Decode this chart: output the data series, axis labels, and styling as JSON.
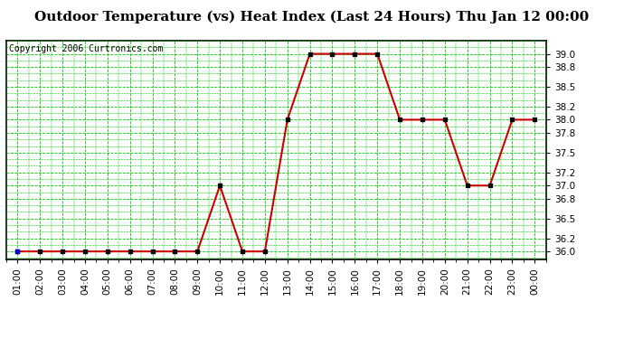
{
  "title": "Outdoor Temperature (vs) Heat Index (Last 24 Hours) Thu Jan 12 00:00",
  "copyright": "Copyright 2006 Curtronics.com",
  "x_labels": [
    "01:00",
    "02:00",
    "03:00",
    "04:00",
    "05:00",
    "06:00",
    "07:00",
    "08:00",
    "09:00",
    "10:00",
    "11:00",
    "12:00",
    "13:00",
    "14:00",
    "15:00",
    "16:00",
    "17:00",
    "18:00",
    "19:00",
    "20:00",
    "21:00",
    "22:00",
    "23:00",
    "00:00"
  ],
  "y_values": [
    36.0,
    36.0,
    36.0,
    36.0,
    36.0,
    36.0,
    36.0,
    36.0,
    36.0,
    37.0,
    36.0,
    36.0,
    38.0,
    39.0,
    39.0,
    39.0,
    39.0,
    38.0,
    38.0,
    38.0,
    37.0,
    37.0,
    38.0,
    38.0
  ],
  "ylim": [
    35.88,
    39.12
  ],
  "yticks": [
    36.0,
    36.2,
    36.5,
    36.8,
    37.0,
    37.2,
    37.5,
    37.8,
    38.0,
    38.2,
    38.5,
    38.8,
    39.0
  ],
  "line_color": "#cc0000",
  "marker_color": "#000000",
  "first_marker_color": "#0000cc",
  "grid_color": "#00cc00",
  "bg_color": "#ffffff",
  "title_fontsize": 11,
  "tick_fontsize": 7.5,
  "copyright_fontsize": 7
}
